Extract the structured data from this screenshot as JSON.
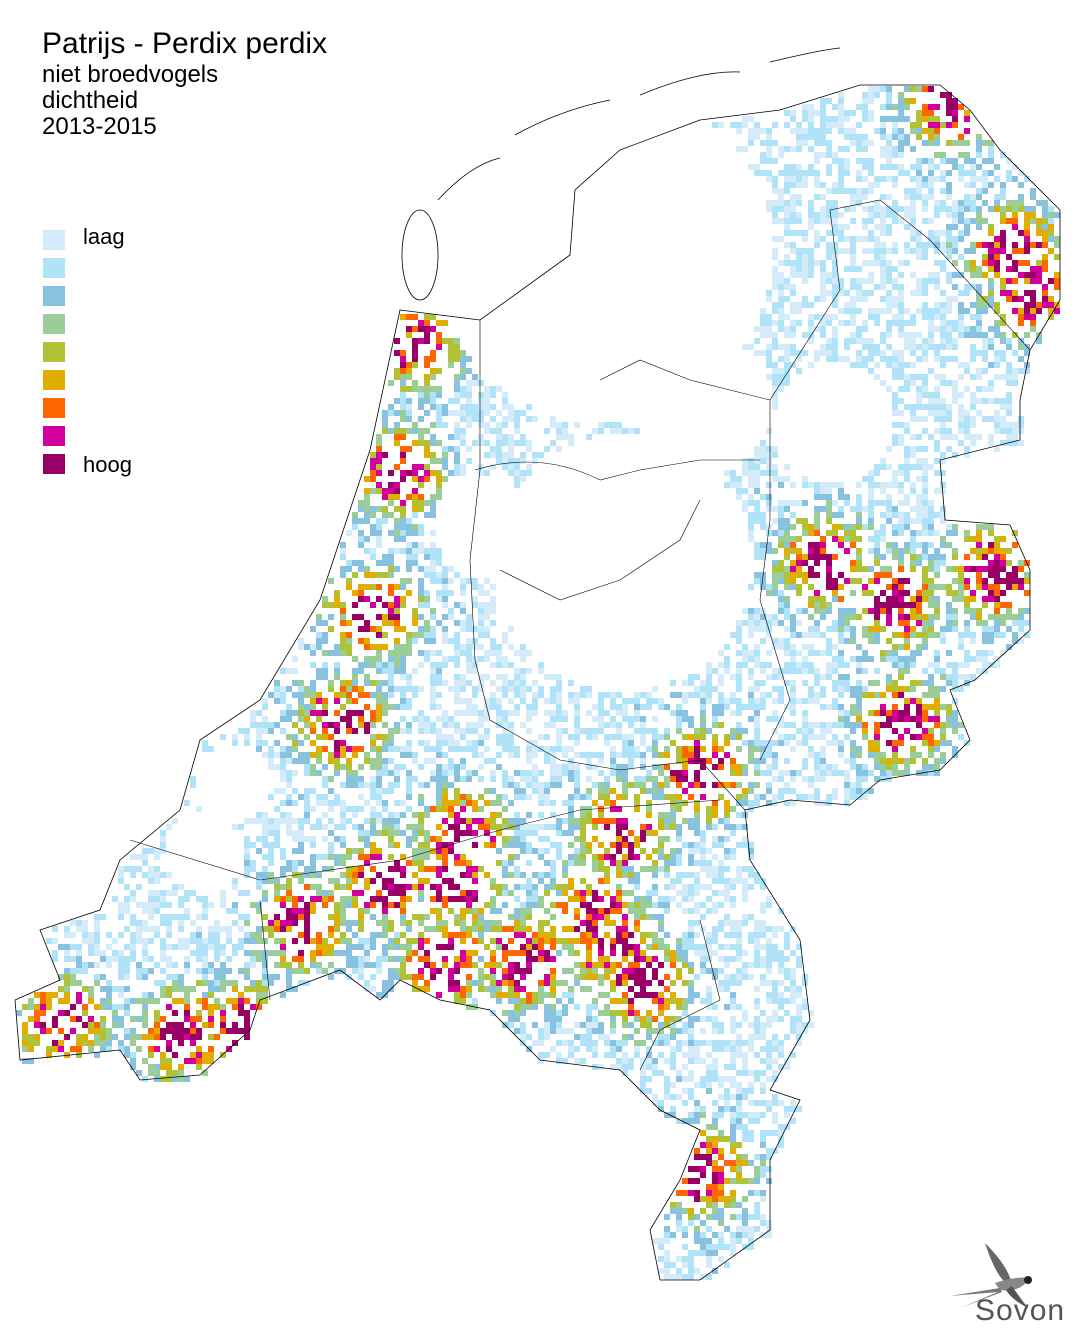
{
  "title": "Patrijs - Perdix perdix",
  "subtitle_lines": [
    "niet broedvogels",
    "dichtheid",
    "2013-2015"
  ],
  "legend": {
    "low_label": "laag",
    "high_label": "hoog",
    "colors": [
      "#d4ebf9",
      "#b0e2f8",
      "#88c2df",
      "#9bcd98",
      "#b1c236",
      "#e0ad00",
      "#ff6600",
      "#d1009c",
      "#990066"
    ]
  },
  "logo": {
    "text": "Sovon"
  }
}
